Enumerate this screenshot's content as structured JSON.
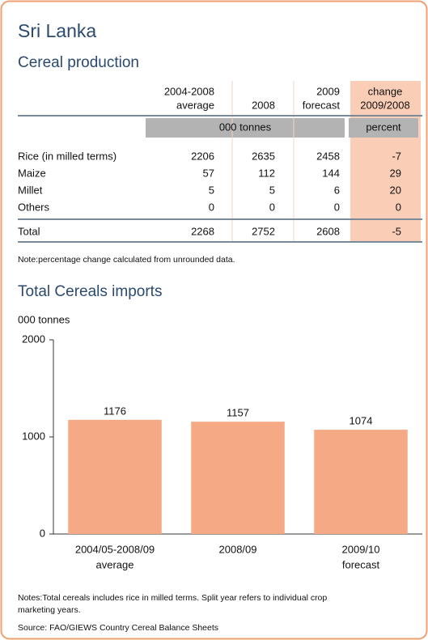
{
  "title": "Sri Lanka",
  "table": {
    "title": "Cereal production",
    "columns": [
      [
        "2004-2008",
        "average"
      ],
      [
        "2008"
      ],
      [
        "2009",
        "forecast"
      ],
      [
        "change",
        "2009/2008"
      ]
    ],
    "units": [
      "000 tonnes",
      "percent"
    ],
    "rows": [
      [
        "Rice (in milled terms)",
        2206,
        2635,
        2458,
        -7
      ],
      [
        "Maize",
        57,
        112,
        144,
        29
      ],
      [
        "Millet",
        5,
        5,
        6,
        20
      ],
      [
        "Others",
        0,
        0,
        0,
        0
      ]
    ],
    "total": [
      "Total",
      2268,
      2752,
      2608,
      -5
    ],
    "note": "Note:percentage change calculated from unrounded data."
  },
  "chart_data": {
    "type": "bar",
    "title": "Total Cereals imports",
    "y_label": "000 tonnes",
    "categories": [
      [
        "2004/05-2008/09",
        "average"
      ],
      [
        "2008/09"
      ],
      [
        "2009/10",
        "forecast"
      ]
    ],
    "values": [
      1176,
      1157,
      1074
    ],
    "color": "#f5aa85",
    "ylim": [
      0,
      2000
    ],
    "yticks": [
      0,
      1000,
      2000
    ]
  },
  "notes": [
    "Notes:Total cereals includes rice in milled terms. Split year refers to individual crop",
    "marketing years."
  ],
  "source": "Source: FAO/GIEWS Country Cereal Balance Sheets"
}
